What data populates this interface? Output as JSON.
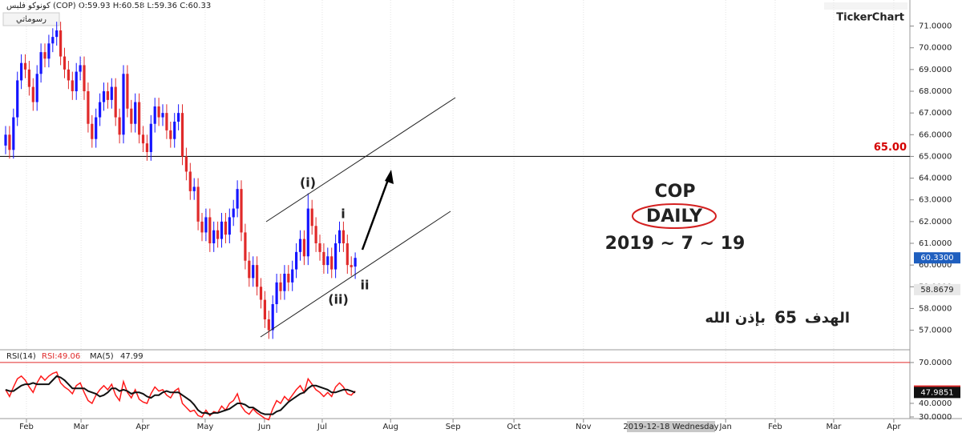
{
  "header": {
    "legend": "كونوكو فلبس (COP) O:59.93 H:60.58 L:59.36 C:60.33",
    "tools": "رسوماتي",
    "brand": "TickerChart",
    "cursor_date": "2019-12-18 Wednesday"
  },
  "annotations": {
    "wave_i_major": "(i)",
    "wave_i_minor": "i",
    "wave_ii_major": "(ii)",
    "wave_ii_minor": "ii",
    "symbol": "COP",
    "period": "DAILY",
    "date": "2019 ~ 7 ~ 19",
    "target_word": "الهدف",
    "target_value": "65",
    "target_note": "بإذن الله"
  },
  "chart_data": [
    {
      "type": "candlestick",
      "up_color": "#1515ff",
      "down_color": "#e02a2a",
      "open": [
        65.5,
        66.0,
        65.3,
        66.8,
        68.5,
        69.3,
        69.0,
        68.2,
        67.5,
        68.8,
        69.8,
        69.5,
        70.2,
        70.5,
        70.8,
        69.6,
        69.0,
        68.5,
        68.0,
        68.9,
        69.2,
        68.0,
        66.5,
        65.8,
        66.8,
        67.5,
        68.0,
        67.6,
        68.2,
        66.8,
        66.0,
        68.8,
        67.2,
        66.5,
        67.5,
        66.0,
        65.6,
        65.2,
        66.5,
        67.3,
        66.8,
        67.0,
        66.2,
        65.8,
        66.6,
        67.0,
        65.0,
        64.3,
        63.4,
        63.6,
        62.0,
        61.5,
        62.2,
        61.0,
        61.6,
        61.2,
        62.0,
        61.4,
        62.2,
        62.6,
        63.5,
        61.5,
        60.2,
        59.4,
        60.0,
        59.0,
        58.4,
        57.5,
        57.0,
        58.2,
        59.2,
        58.8,
        59.6,
        59.2,
        59.8,
        60.6,
        61.2,
        60.4,
        62.6,
        61.8,
        61.0,
        60.6,
        60.0,
        60.4,
        59.8,
        61.0,
        61.6,
        61.0,
        60.0,
        59.93
      ],
      "high": [
        66.4,
        66.4,
        67.2,
        68.9,
        69.7,
        69.7,
        69.4,
        68.6,
        69.2,
        70.2,
        70.2,
        70.6,
        70.9,
        71.2,
        71.2,
        70.0,
        69.4,
        68.9,
        69.3,
        69.6,
        69.6,
        68.4,
        66.9,
        67.2,
        67.9,
        68.4,
        68.4,
        68.6,
        68.6,
        67.2,
        69.2,
        69.2,
        67.6,
        67.9,
        67.9,
        66.4,
        66.0,
        66.9,
        67.7,
        67.7,
        67.4,
        67.4,
        66.6,
        67.0,
        67.4,
        67.4,
        65.4,
        64.7,
        64.0,
        64.0,
        62.4,
        62.6,
        62.6,
        62.0,
        62.0,
        62.4,
        62.4,
        62.6,
        63.0,
        63.9,
        63.9,
        61.9,
        60.6,
        60.4,
        60.4,
        59.4,
        58.8,
        57.9,
        58.6,
        59.6,
        59.6,
        60.0,
        60.0,
        60.2,
        61.0,
        61.6,
        61.6,
        63.3,
        63.0,
        62.2,
        61.4,
        61.0,
        60.8,
        60.8,
        61.4,
        62.0,
        62.0,
        61.4,
        60.4,
        60.58
      ],
      "low": [
        65.1,
        64.9,
        64.9,
        66.4,
        68.1,
        68.6,
        67.8,
        67.1,
        67.1,
        68.4,
        69.1,
        69.1,
        69.8,
        70.1,
        69.2,
        68.6,
        68.1,
        67.6,
        67.6,
        68.5,
        67.6,
        66.1,
        65.4,
        65.4,
        66.4,
        67.1,
        67.2,
        67.2,
        66.4,
        65.6,
        65.6,
        66.8,
        66.1,
        66.1,
        65.6,
        65.2,
        64.8,
        64.8,
        66.1,
        66.4,
        66.4,
        65.8,
        65.4,
        65.4,
        66.2,
        64.6,
        63.9,
        63.0,
        63.0,
        61.6,
        61.1,
        61.1,
        60.6,
        60.6,
        60.8,
        60.8,
        61.0,
        61.0,
        61.8,
        62.2,
        61.1,
        59.8,
        59.0,
        59.0,
        58.6,
        58.0,
        57.1,
        56.6,
        56.6,
        57.8,
        58.4,
        58.4,
        58.8,
        58.8,
        59.4,
        60.2,
        60.0,
        60.0,
        61.4,
        60.6,
        60.2,
        59.6,
        59.6,
        59.4,
        59.4,
        60.6,
        60.6,
        59.6,
        59.5,
        59.36
      ],
      "close": [
        66.0,
        65.3,
        66.8,
        68.5,
        69.3,
        69.0,
        68.2,
        67.5,
        68.8,
        69.8,
        69.5,
        70.2,
        70.5,
        70.8,
        69.6,
        69.0,
        68.5,
        68.0,
        68.9,
        69.2,
        68.0,
        66.5,
        65.8,
        66.8,
        67.5,
        68.0,
        67.6,
        68.2,
        66.8,
        66.0,
        68.8,
        67.2,
        66.5,
        67.5,
        66.0,
        65.6,
        65.2,
        66.5,
        67.3,
        66.8,
        67.0,
        66.2,
        65.8,
        66.6,
        67.0,
        65.0,
        64.3,
        63.4,
        63.6,
        62.0,
        61.5,
        62.2,
        61.0,
        61.6,
        61.2,
        62.0,
        61.4,
        62.2,
        62.6,
        63.5,
        61.5,
        60.2,
        59.4,
        60.0,
        59.0,
        58.4,
        57.5,
        57.0,
        58.2,
        59.2,
        58.8,
        59.6,
        59.2,
        59.8,
        60.6,
        61.2,
        60.4,
        62.6,
        61.8,
        61.0,
        60.6,
        60.0,
        60.4,
        59.8,
        61.0,
        61.6,
        61.0,
        60.0,
        59.9,
        60.33
      ],
      "xlim": [
        -1.43,
        230.2
      ],
      "xticks": [
        {
          "value": 5.3,
          "label": "Feb"
        },
        {
          "value": 19.2,
          "label": "Mar"
        },
        {
          "value": 34.9,
          "label": "Apr"
        },
        {
          "value": 50.8,
          "label": "May"
        },
        {
          "value": 65.9,
          "label": "Jun"
        },
        {
          "value": 80.6,
          "label": "Jul"
        },
        {
          "value": 98,
          "label": "Aug"
        },
        {
          "value": 113.9,
          "label": "Sep"
        },
        {
          "value": 129.4,
          "label": "Oct"
        },
        {
          "value": 147.1,
          "label": "Nov"
        },
        {
          "value": 183.3,
          "label": "Jan"
        },
        {
          "value": 195.9,
          "label": "Feb"
        },
        {
          "value": 210.8,
          "label": "Mar"
        },
        {
          "value": 226.1,
          "label": "Apr"
        }
      ],
      "ylim": [
        56.1,
        72.2
      ],
      "yticks": [
        {
          "value": 57,
          "label": "57.0000"
        },
        {
          "value": 58,
          "label": "58.0000"
        },
        {
          "value": 59,
          "label": "59.0000"
        },
        {
          "value": 60,
          "label": "60.0000"
        },
        {
          "value": 61,
          "label": "61.0000"
        },
        {
          "value": 62,
          "label": "62.0000"
        },
        {
          "value": 63,
          "label": "63.0000"
        },
        {
          "value": 64,
          "label": "64.0000"
        },
        {
          "value": 65,
          "label": "65.0000"
        },
        {
          "value": 66,
          "label": "66.0000"
        },
        {
          "value": 67,
          "label": "67.0000"
        },
        {
          "value": 68,
          "label": "68.0000"
        },
        {
          "value": 69,
          "label": "69.0000"
        },
        {
          "value": 70,
          "label": "70.0000"
        },
        {
          "value": 71,
          "label": "71.0000"
        }
      ],
      "levels": [
        {
          "value": 65,
          "label": "65.00",
          "color": "#111111",
          "label_color": "#d40000"
        }
      ],
      "price_tags": [
        {
          "value": 60.33,
          "label": "60.3300",
          "color": "#1f5fbf"
        },
        {
          "value": 58.8679,
          "label": "58.8679",
          "color": "#e8e8e8"
        }
      ]
    },
    {
      "type": "line",
      "title": "RSI(14)",
      "value_label": "47.99",
      "series": [
        {
          "name": "RSI:49.06",
          "color": "#ff1a1a",
          "values": [
            50,
            45,
            52,
            58,
            60,
            57,
            52,
            48,
            55,
            60,
            57,
            60,
            62,
            63,
            55,
            52,
            50,
            47,
            53,
            55,
            48,
            42,
            40,
            46,
            50,
            53,
            50,
            54,
            46,
            42,
            56,
            48,
            44,
            50,
            43,
            41,
            40,
            47,
            52,
            49,
            50,
            46,
            44,
            49,
            51,
            40,
            37,
            34,
            35,
            31,
            30,
            35,
            31,
            34,
            33,
            38,
            35,
            40,
            42,
            47,
            38,
            34,
            32,
            36,
            33,
            31,
            29,
            28,
            36,
            42,
            40,
            45,
            42,
            46,
            50,
            53,
            48,
            58,
            54,
            50,
            48,
            45,
            48,
            45,
            52,
            55,
            52,
            47,
            46,
            49.06
          ]
        },
        {
          "name": "MA(5)",
          "color": "#111111",
          "values": [
            50,
            49,
            49,
            51,
            53,
            54,
            54,
            55,
            54,
            54,
            54,
            54,
            57,
            60,
            59,
            57,
            54,
            51,
            51,
            51,
            51,
            49,
            48,
            47,
            45,
            46,
            48,
            51,
            51,
            49,
            50,
            49,
            47,
            48,
            48,
            47,
            45,
            44,
            46,
            46,
            48,
            49,
            48,
            48,
            48,
            46,
            44,
            42,
            39,
            35,
            33,
            33,
            32,
            33,
            33,
            34,
            35,
            36,
            38,
            40,
            40,
            39,
            37,
            37,
            35,
            33,
            32,
            32,
            32,
            34,
            35,
            38,
            41,
            43,
            45,
            47,
            48,
            51,
            53,
            53,
            52,
            51,
            50,
            48,
            48,
            49,
            50,
            50,
            49,
            47.99
          ]
        }
      ],
      "ylim": [
        28.8,
        77.6
      ],
      "yticks": [
        {
          "value": 30,
          "label": "30.0000"
        },
        {
          "value": 40,
          "label": "40.0000"
        },
        {
          "value": 70,
          "label": "70.0000"
        }
      ],
      "price_tags": [
        {
          "value": 49.0608,
          "color": "#e02a2a"
        },
        {
          "value": 47.9851,
          "color": "#111111"
        }
      ]
    }
  ]
}
